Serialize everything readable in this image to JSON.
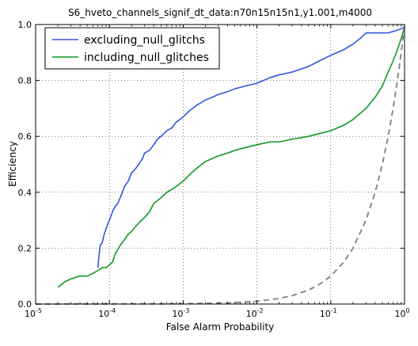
{
  "chart_data": {
    "type": "line",
    "title": "S6_hveto_channels_signif_dt_data:n70n15n15n1,y1.001,m4000",
    "xlabel": "False Alarm Probability",
    "ylabel": "Efficiency",
    "xscale": "log",
    "xlim": [
      1e-05,
      1
    ],
    "ylim": [
      0,
      1
    ],
    "grid": true,
    "legend_position": "top-left",
    "x_ticks": [
      {
        "base": "10",
        "exp": "-5",
        "value": 1e-05
      },
      {
        "base": "10",
        "exp": "-4",
        "value": 0.0001
      },
      {
        "base": "10",
        "exp": "-3",
        "value": 0.001
      },
      {
        "base": "10",
        "exp": "-2",
        "value": 0.01
      },
      {
        "base": "10",
        "exp": "-1",
        "value": 0.1
      },
      {
        "base": "10",
        "exp": "0",
        "value": 1
      }
    ],
    "y_ticks": [
      {
        "label": "0.0",
        "value": 0
      },
      {
        "label": "0.2",
        "value": 0.2
      },
      {
        "label": "0.4",
        "value": 0.4
      },
      {
        "label": "0.6",
        "value": 0.6
      },
      {
        "label": "0.8",
        "value": 0.8
      },
      {
        "label": "1.0",
        "value": 1
      }
    ],
    "series": [
      {
        "name": "excluding_null_glitchs",
        "color": "#3355dd",
        "style": "solid",
        "x": [
          7e-05,
          7.2e-05,
          7.5e-05,
          8e-05,
          8.5e-05,
          9e-05,
          0.0001,
          0.00011,
          0.00012,
          0.00013,
          0.00014,
          0.00015,
          0.00016,
          0.00018,
          0.0002,
          0.00022,
          0.00025,
          0.00028,
          0.0003,
          0.00035,
          0.0004,
          0.00045,
          0.0005,
          0.0006,
          0.0007,
          0.0008,
          0.0009,
          0.001,
          0.0012,
          0.0015,
          0.002,
          0.0025,
          0.003,
          0.004,
          0.005,
          0.007,
          0.01,
          0.015,
          0.02,
          0.03,
          0.05,
          0.07,
          0.1,
          0.15,
          0.2,
          0.25,
          0.3,
          0.4,
          0.6,
          0.8,
          1.0
        ],
        "y": [
          0.13,
          0.17,
          0.21,
          0.22,
          0.25,
          0.27,
          0.3,
          0.33,
          0.35,
          0.36,
          0.38,
          0.4,
          0.42,
          0.44,
          0.47,
          0.48,
          0.5,
          0.52,
          0.54,
          0.55,
          0.57,
          0.59,
          0.6,
          0.62,
          0.63,
          0.65,
          0.66,
          0.67,
          0.69,
          0.71,
          0.73,
          0.74,
          0.75,
          0.76,
          0.77,
          0.78,
          0.79,
          0.81,
          0.82,
          0.83,
          0.85,
          0.87,
          0.89,
          0.91,
          0.93,
          0.95,
          0.97,
          0.97,
          0.97,
          0.98,
          0.99
        ]
      },
      {
        "name": "including_null_glitches",
        "color": "#119922",
        "style": "solid",
        "x": [
          2e-05,
          2.5e-05,
          3e-05,
          4e-05,
          5e-05,
          6e-05,
          7e-05,
          8e-05,
          9e-05,
          0.0001,
          0.00011,
          0.00012,
          0.00014,
          0.00016,
          0.00018,
          0.0002,
          0.00025,
          0.0003,
          0.00035,
          0.0004,
          0.0005,
          0.0006,
          0.0007,
          0.0008,
          0.001,
          0.0013,
          0.0016,
          0.002,
          0.003,
          0.004,
          0.005,
          0.007,
          0.01,
          0.015,
          0.02,
          0.03,
          0.05,
          0.07,
          0.1,
          0.15,
          0.2,
          0.3,
          0.4,
          0.5,
          0.6,
          0.7,
          0.8,
          0.9,
          1.0
        ],
        "y": [
          0.06,
          0.08,
          0.09,
          0.1,
          0.1,
          0.11,
          0.12,
          0.13,
          0.13,
          0.14,
          0.15,
          0.18,
          0.21,
          0.23,
          0.25,
          0.26,
          0.29,
          0.31,
          0.33,
          0.36,
          0.38,
          0.4,
          0.41,
          0.42,
          0.44,
          0.47,
          0.49,
          0.51,
          0.53,
          0.54,
          0.55,
          0.56,
          0.57,
          0.58,
          0.58,
          0.59,
          0.6,
          0.61,
          0.62,
          0.64,
          0.66,
          0.7,
          0.74,
          0.78,
          0.83,
          0.87,
          0.91,
          0.95,
          0.99
        ]
      },
      {
        "name": "",
        "color": "#888888",
        "style": "dashed",
        "x": [
          1e-05,
          0.001,
          0.005,
          0.01,
          0.02,
          0.03,
          0.05,
          0.07,
          0.1,
          0.15,
          0.2,
          0.3,
          0.4,
          0.5,
          0.6,
          0.7,
          0.8,
          0.9,
          1.0
        ],
        "y": [
          0.0,
          0.001,
          0.005,
          0.01,
          0.02,
          0.03,
          0.05,
          0.07,
          0.1,
          0.15,
          0.2,
          0.3,
          0.4,
          0.5,
          0.6,
          0.7,
          0.8,
          0.9,
          1.0
        ]
      }
    ]
  }
}
